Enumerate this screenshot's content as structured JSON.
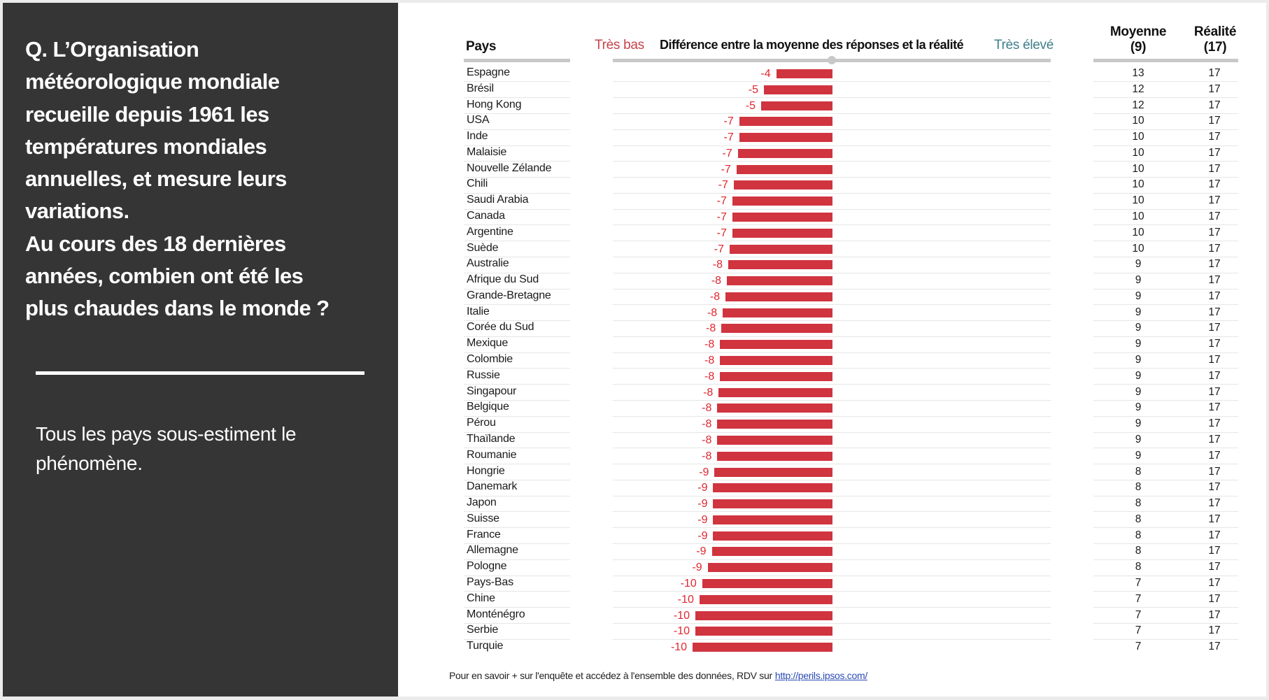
{
  "left_panel": {
    "question_lines": [
      "Q. L’Organisation",
      "météorologique mondiale",
      "recueille depuis 1961 les",
      "températures mondiales",
      "annuelles, et mesure leurs",
      "variations.",
      "Au cours des 18 dernières",
      "années, combien ont été les",
      "plus chaudes dans le monde ?"
    ],
    "conclusion": "Tous les pays sous-estiment le phénomène."
  },
  "colors": {
    "panel_bg": "#353535",
    "bar": "#d0343f",
    "label_low": "#c8424a",
    "label_high": "#3f7f8c",
    "diff_text": "#e0262f"
  },
  "chart_data": {
    "type": "bar",
    "orientation": "horizontal",
    "title": "Différence entre la moyenne des réponses et la réalité",
    "axis_low_label": "Très bas",
    "axis_high_label": "Très élevé",
    "columns": {
      "country": "Pays",
      "mean_header": "Moyenne",
      "mean_overall": "(9)",
      "reality_header": "Réalité",
      "reality_overall": "(17)"
    },
    "xlim": [
      -10.5,
      0
    ],
    "categories": [
      "Espagne",
      "Brésil",
      "Hong Kong",
      "USA",
      "Inde",
      "Malaisie",
      "Nouvelle Zélande",
      "Chili",
      "Saudi Arabia",
      "Canada",
      "Argentine",
      "Suède",
      "Australie",
      "Afrique du Sud",
      "Grande-Bretagne",
      "Italie",
      "Corée du Sud",
      "Mexique",
      "Colombie",
      "Russie",
      "Singapour",
      "Belgique",
      "Pérou",
      "Thaïlande",
      "Roumanie",
      "Hongrie",
      "Danemark",
      "Japon",
      "Suisse",
      "France",
      "Allemagne",
      "Pologne",
      "Pays-Bas",
      "Chine",
      "Monténégro",
      "Serbie",
      "Turquie"
    ],
    "difference_labels": [
      "-4",
      "-5",
      "-5",
      "-7",
      "-7",
      "-7",
      "-7",
      "-7",
      "-7",
      "-7",
      "-7",
      "-7",
      "-8",
      "-8",
      "-8",
      "-8",
      "-8",
      "-8",
      "-8",
      "-8",
      "-8",
      "-8",
      "-8",
      "-8",
      "-8",
      "-9",
      "-9",
      "-9",
      "-9",
      "-9",
      "-9",
      "-9",
      "-10",
      "-10",
      "-10",
      "-10",
      "-10"
    ],
    "difference_values": [
      -4.1,
      -5.0,
      -5.2,
      -6.8,
      -6.8,
      -6.9,
      -7.0,
      -7.2,
      -7.3,
      -7.3,
      -7.3,
      -7.5,
      -7.6,
      -7.7,
      -7.8,
      -8.0,
      -8.1,
      -8.2,
      -8.2,
      -8.2,
      -8.3,
      -8.4,
      -8.4,
      -8.4,
      -8.4,
      -8.6,
      -8.7,
      -8.7,
      -8.7,
      -8.7,
      -8.8,
      -9.1,
      -9.5,
      -9.7,
      -10.0,
      -10.0,
      -10.2
    ],
    "mean": [
      "13",
      "12",
      "12",
      "10",
      "10",
      "10",
      "10",
      "10",
      "10",
      "10",
      "10",
      "10",
      "9",
      "9",
      "9",
      "9",
      "9",
      "9",
      "9",
      "9",
      "9",
      "9",
      "9",
      "9",
      "9",
      "8",
      "8",
      "8",
      "8",
      "8",
      "8",
      "8",
      "7",
      "7",
      "7",
      "7",
      "7"
    ],
    "reality": [
      "17",
      "17",
      "17",
      "17",
      "17",
      "17",
      "17",
      "17",
      "17",
      "17",
      "17",
      "17",
      "17",
      "17",
      "17",
      "17",
      "17",
      "17",
      "17",
      "17",
      "17",
      "17",
      "17",
      "17",
      "17",
      "17",
      "17",
      "17",
      "17",
      "17",
      "17",
      "17",
      "17",
      "17",
      "17",
      "17",
      "17"
    ]
  },
  "footer": {
    "text": "Pour en savoir + sur l'enquête et accédez à l'ensemble des données, RDV sur",
    "link": "http://perils.ipsos.com/"
  }
}
